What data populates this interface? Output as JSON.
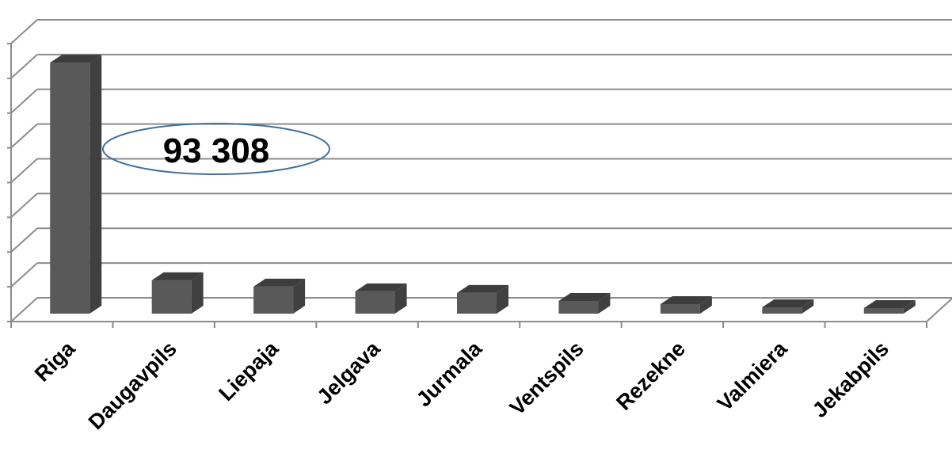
{
  "chart_data": {
    "type": "bar",
    "style": "3d-column",
    "categories": [
      "Riga",
      "Daugavpils",
      "Liepaja",
      "Jelgava",
      "Jurmala",
      "Ventspils",
      "Rezekne",
      "Valmiera",
      "Jekabpils"
    ],
    "values": [
      316000,
      42000,
      34000,
      28000,
      26000,
      16000,
      12000,
      8000,
      7000
    ],
    "ylim": [
      0,
      350000
    ],
    "y_gridline_count": 8,
    "grid": true,
    "y_tick_labels_shown": false,
    "bar_color": "#595959",
    "annotation": {
      "text": "93 308",
      "shape": "ellipse",
      "outline_color": "#41719C"
    }
  }
}
